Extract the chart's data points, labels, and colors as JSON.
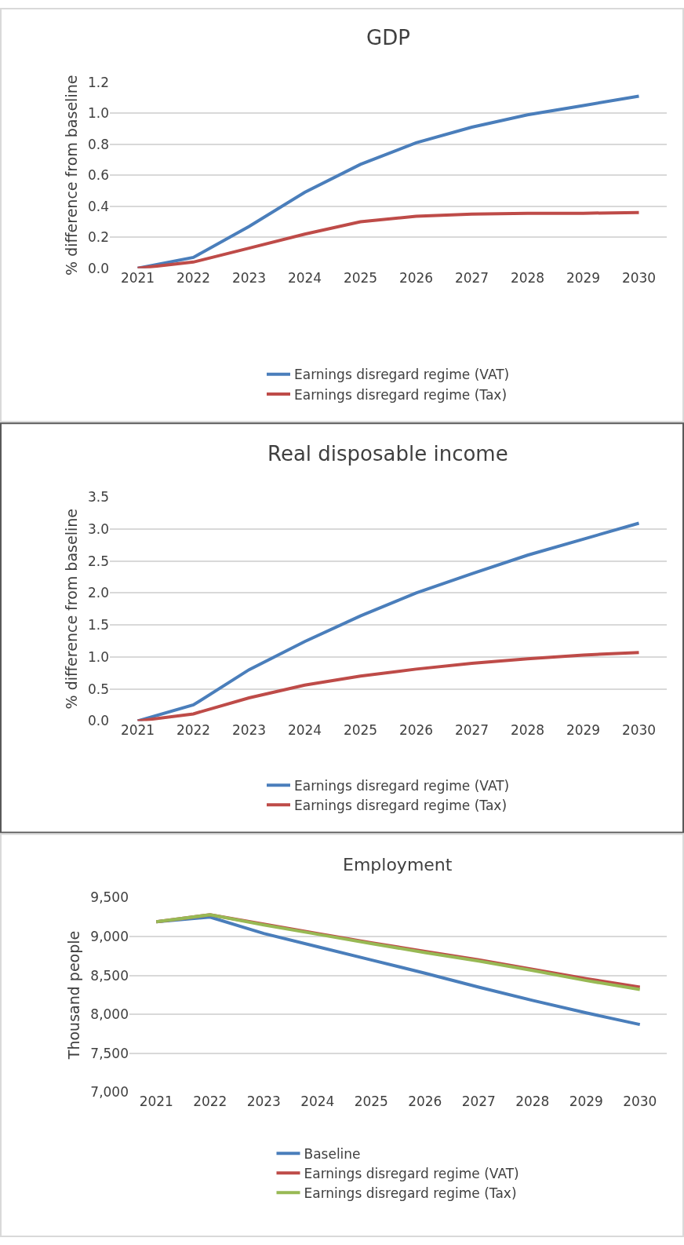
{
  "chart_data": [
    {
      "type": "line",
      "title": "GDP",
      "ylabel": "% difference from baseline",
      "categories": [
        "2021",
        "2022",
        "2023",
        "2024",
        "2025",
        "2026",
        "2027",
        "2028",
        "2029",
        "2030"
      ],
      "ylim": [
        0,
        1.2
      ],
      "yticks": [
        {
          "value": 0,
          "label": "0.0"
        },
        {
          "value": 0.2,
          "label": "0.2"
        },
        {
          "value": 0.4,
          "label": "0.4"
        },
        {
          "value": 0.6,
          "label": "0.6"
        },
        {
          "value": 0.8,
          "label": "0.8"
        },
        {
          "value": 1.0,
          "label": "1.0"
        },
        {
          "value": 1.2,
          "label": "1.2"
        }
      ],
      "grid": "y",
      "legend": "bottom",
      "marker": "none",
      "line_style": "solid",
      "series": [
        {
          "name": "Earnings disregard regime (VAT)",
          "color": "#4a7ebb",
          "values": [
            0,
            0.07,
            0.27,
            0.49,
            0.67,
            0.81,
            0.91,
            0.99,
            1.05,
            1.11
          ]
        },
        {
          "name": "Earnings disregard regime (Tax)",
          "color": "#be4b48",
          "values": [
            0,
            0.04,
            0.13,
            0.22,
            0.3,
            0.335,
            0.35,
            0.355,
            0.355,
            0.36
          ]
        }
      ]
    },
    {
      "type": "line",
      "title": "Real disposable income",
      "ylabel": "% difference from baseline",
      "categories": [
        "2021",
        "2022",
        "2023",
        "2024",
        "2025",
        "2026",
        "2027",
        "2028",
        "2029",
        "2030"
      ],
      "ylim": [
        0,
        3.5
      ],
      "yticks": [
        {
          "value": 0,
          "label": "0.0"
        },
        {
          "value": 0.5,
          "label": "0.5"
        },
        {
          "value": 1.0,
          "label": "1.0"
        },
        {
          "value": 1.5,
          "label": "1.5"
        },
        {
          "value": 2.0,
          "label": "2.0"
        },
        {
          "value": 2.5,
          "label": "2.5"
        },
        {
          "value": 3.0,
          "label": "3.0"
        },
        {
          "value": 3.5,
          "label": "3.5"
        }
      ],
      "grid": "y",
      "legend": "bottom",
      "marker": "none",
      "line_style": "solid",
      "series": [
        {
          "name": "Earnings disregard regime (VAT)",
          "color": "#4a7ebb",
          "values": [
            0,
            0.25,
            0.8,
            1.24,
            1.64,
            2.0,
            2.3,
            2.59,
            2.84,
            3.09
          ]
        },
        {
          "name": "Earnings disregard regime (Tax)",
          "color": "#be4b48",
          "values": [
            0,
            0.11,
            0.36,
            0.56,
            0.7,
            0.81,
            0.9,
            0.97,
            1.03,
            1.07
          ]
        }
      ]
    },
    {
      "type": "line",
      "title": "Employment",
      "ylabel": "Thousand people",
      "categories": [
        "2021",
        "2022",
        "2023",
        "2024",
        "2025",
        "2026",
        "2027",
        "2028",
        "2029",
        "2030"
      ],
      "ylim": [
        7000,
        9500
      ],
      "yticks": [
        {
          "value": 7000,
          "label": "7,000"
        },
        {
          "value": 7500,
          "label": "7,500"
        },
        {
          "value": 8000,
          "label": "8,000"
        },
        {
          "value": 8500,
          "label": "8,500"
        },
        {
          "value": 9000,
          "label": "9,000"
        },
        {
          "value": 9500,
          "label": "9,500"
        }
      ],
      "grid": "y",
      "legend": "bottom",
      "marker": "none",
      "line_style": "solid",
      "series": [
        {
          "name": "Baseline",
          "color": "#4a7ebb",
          "values": [
            9190,
            9250,
            9040,
            8870,
            8700,
            8530,
            8350,
            8180,
            8020,
            7870
          ]
        },
        {
          "name": "Earnings disregard regime (VAT)",
          "color": "#be4b48",
          "values": [
            9190,
            9280,
            9160,
            9040,
            8920,
            8810,
            8700,
            8580,
            8460,
            8350
          ]
        },
        {
          "name": "Earnings disregard regime (Tax)",
          "color": "#98b954",
          "values": [
            9190,
            9280,
            9150,
            9030,
            8910,
            8795,
            8685,
            8565,
            8435,
            8320
          ]
        }
      ]
    }
  ]
}
